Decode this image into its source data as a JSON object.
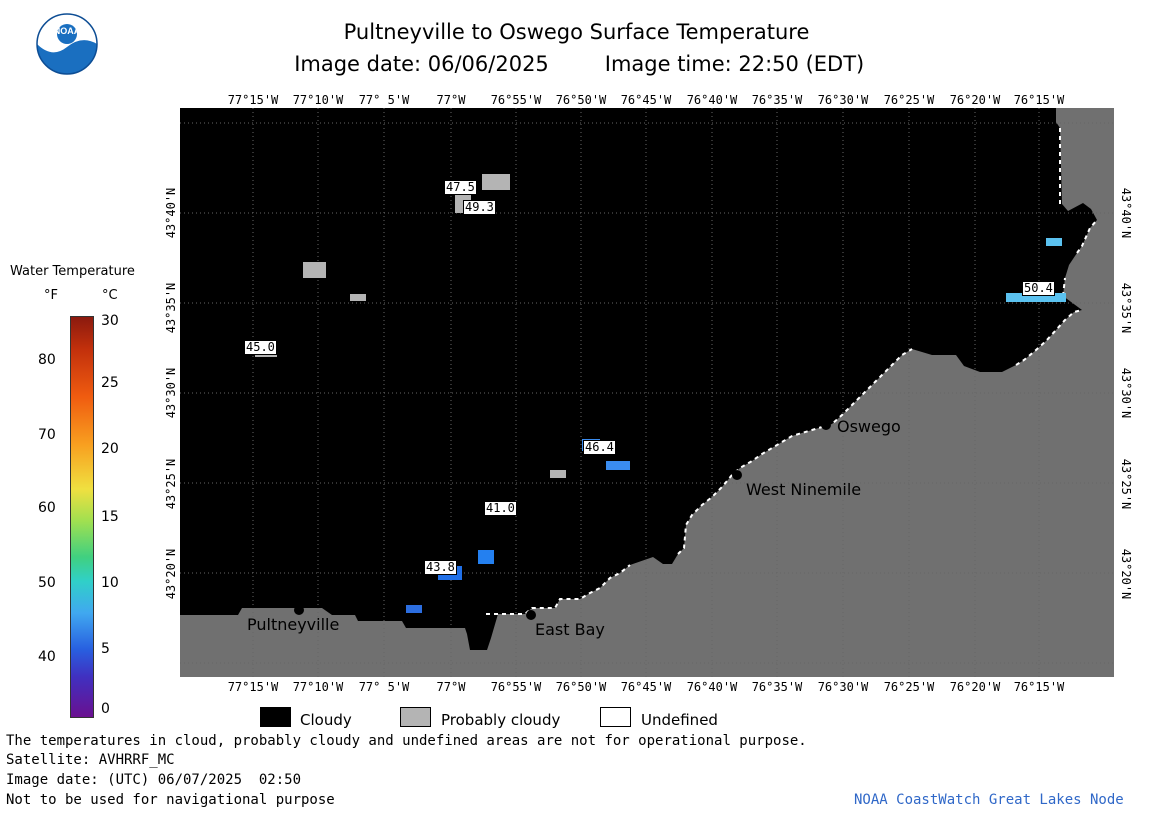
{
  "header": {
    "title": "Pultneyville to Oswego Surface Temperature",
    "date_line": "Image date: 06/06/2025",
    "time_line": "Image time: 22:50 (EDT)",
    "logo_text": "NOAA"
  },
  "map": {
    "longitude_labels": [
      "77°15'W",
      "77°10'W",
      "77° 5'W",
      "77°W",
      "76°55'W",
      "76°50'W",
      "76°45'W",
      "76°40'W",
      "76°35'W",
      "76°30'W",
      "76°25'W",
      "76°20'W",
      "76°15'W"
    ],
    "latitude_labels": [
      "43°40'N",
      "43°35'N",
      "43°30'N",
      "43°25'N",
      "43°20'N"
    ],
    "cities": [
      {
        "name": "Pultneyville"
      },
      {
        "name": "East Bay"
      },
      {
        "name": "West Ninemile"
      },
      {
        "name": "Oswego"
      }
    ],
    "temperature_labels": [
      "47.5",
      "49.3",
      "45.0",
      "46.4",
      "41.0",
      "43.8",
      "50.4"
    ],
    "colors": {
      "water_cloud": "#000000",
      "land": "#707070",
      "probably_cloudy": "#b4b4b4",
      "grid": "#555555"
    }
  },
  "legend": {
    "title": "Water Temperature",
    "unit_f": "°F",
    "unit_c": "°C",
    "f_ticks": [
      "80",
      "70",
      "60",
      "50",
      "40"
    ],
    "c_ticks": [
      "30",
      "25",
      "20",
      "15",
      "10",
      "5",
      "0"
    ]
  },
  "key": {
    "cloudy": "Cloudy",
    "probably_cloudy": "Probably cloudy",
    "undefined": "Undefined"
  },
  "footer": {
    "disclaimer": "The temperatures in cloud, probably cloudy and undefined areas are not for operational purpose.",
    "satellite": "Satellite: AVHRRF_MC",
    "utc_date": "Image date: (UTC) 06/07/2025  02:50",
    "nav_warning": "Not to be used for navigational purpose",
    "credit": "NOAA CoastWatch Great Lakes Node"
  }
}
